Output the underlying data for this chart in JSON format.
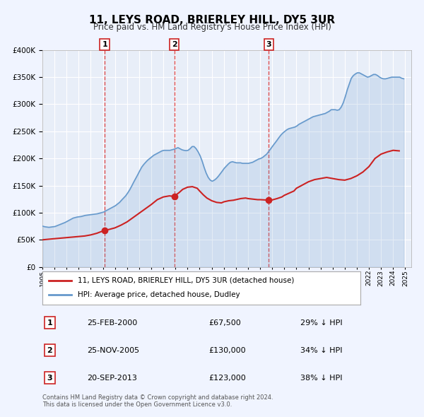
{
  "title": "11, LEYS ROAD, BRIERLEY HILL, DY5 3UR",
  "subtitle": "Price paid vs. HM Land Registry's House Price Index (HPI)",
  "background_color": "#f0f4ff",
  "plot_bg_color": "#e8eef8",
  "grid_color": "#ffffff",
  "ylim": [
    0,
    400000
  ],
  "yticks": [
    0,
    50000,
    100000,
    150000,
    200000,
    250000,
    300000,
    350000,
    400000
  ],
  "ytick_labels": [
    "£0",
    "£50K",
    "£100K",
    "£150K",
    "£200K",
    "£250K",
    "£300K",
    "£350K",
    "£400K"
  ],
  "xmin": 1995.0,
  "xmax": 2025.5,
  "xticks": [
    1995,
    1996,
    1997,
    1998,
    1999,
    2000,
    2001,
    2002,
    2003,
    2004,
    2005,
    2006,
    2007,
    2008,
    2009,
    2010,
    2011,
    2012,
    2013,
    2014,
    2015,
    2016,
    2017,
    2018,
    2019,
    2020,
    2021,
    2022,
    2023,
    2024,
    2025
  ],
  "hpi_color": "#6699cc",
  "price_color": "#cc2222",
  "sale_marker_color": "#cc2222",
  "vline_color": "#dd3333",
  "transactions": [
    {
      "num": 1,
      "date": "25-FEB-2000",
      "x": 2000.15,
      "price": 67500,
      "pct": "29%",
      "direction": "↓"
    },
    {
      "num": 2,
      "date": "25-NOV-2005",
      "x": 2005.9,
      "price": 130000,
      "pct": "34%",
      "direction": "↓"
    },
    {
      "num": 3,
      "date": "20-SEP-2013",
      "x": 2013.72,
      "price": 123000,
      "pct": "38%",
      "direction": "↓"
    }
  ],
  "legend_line1": "11, LEYS ROAD, BRIERLEY HILL, DY5 3UR (detached house)",
  "legend_line2": "HPI: Average price, detached house, Dudley",
  "footer1": "Contains HM Land Registry data © Crown copyright and database right 2024.",
  "footer2": "This data is licensed under the Open Government Licence v3.0.",
  "hpi_data_x": [
    1995.04,
    1995.21,
    1995.38,
    1995.54,
    1995.71,
    1995.88,
    1996.04,
    1996.21,
    1996.38,
    1996.54,
    1996.71,
    1996.88,
    1997.04,
    1997.21,
    1997.38,
    1997.54,
    1997.71,
    1997.88,
    1998.04,
    1998.21,
    1998.38,
    1998.54,
    1998.71,
    1998.88,
    1999.04,
    1999.21,
    1999.38,
    1999.54,
    1999.71,
    1999.88,
    2000.04,
    2000.21,
    2000.38,
    2000.54,
    2000.71,
    2000.88,
    2001.04,
    2001.21,
    2001.38,
    2001.54,
    2001.71,
    2001.88,
    2002.04,
    2002.21,
    2002.38,
    2002.54,
    2002.71,
    2002.88,
    2003.04,
    2003.21,
    2003.38,
    2003.54,
    2003.71,
    2003.88,
    2004.04,
    2004.21,
    2004.38,
    2004.54,
    2004.71,
    2004.88,
    2005.04,
    2005.21,
    2005.38,
    2005.54,
    2005.71,
    2005.88,
    2006.04,
    2006.21,
    2006.38,
    2006.54,
    2006.71,
    2006.88,
    2007.04,
    2007.21,
    2007.38,
    2007.54,
    2007.71,
    2007.88,
    2008.04,
    2008.21,
    2008.38,
    2008.54,
    2008.71,
    2008.88,
    2009.04,
    2009.21,
    2009.38,
    2009.54,
    2009.71,
    2009.88,
    2010.04,
    2010.21,
    2010.38,
    2010.54,
    2010.71,
    2010.88,
    2011.04,
    2011.21,
    2011.38,
    2011.54,
    2011.71,
    2011.88,
    2012.04,
    2012.21,
    2012.38,
    2012.54,
    2012.71,
    2012.88,
    2013.04,
    2013.21,
    2013.38,
    2013.54,
    2013.71,
    2013.88,
    2014.04,
    2014.21,
    2014.38,
    2014.54,
    2014.71,
    2014.88,
    2015.04,
    2015.21,
    2015.38,
    2015.54,
    2015.71,
    2015.88,
    2016.04,
    2016.21,
    2016.38,
    2016.54,
    2016.71,
    2016.88,
    2017.04,
    2017.21,
    2017.38,
    2017.54,
    2017.71,
    2017.88,
    2018.04,
    2018.21,
    2018.38,
    2018.54,
    2018.71,
    2018.88,
    2019.04,
    2019.21,
    2019.38,
    2019.54,
    2019.71,
    2019.88,
    2020.04,
    2020.21,
    2020.38,
    2020.54,
    2020.71,
    2020.88,
    2021.04,
    2021.21,
    2021.38,
    2021.54,
    2021.71,
    2021.88,
    2022.04,
    2022.21,
    2022.38,
    2022.54,
    2022.71,
    2022.88,
    2023.04,
    2023.21,
    2023.38,
    2023.54,
    2023.71,
    2023.88,
    2024.04,
    2024.21,
    2024.38,
    2024.54,
    2024.71,
    2024.88
  ],
  "hpi_data_y": [
    75000,
    74000,
    73500,
    73000,
    73500,
    74000,
    74500,
    76000,
    77500,
    79000,
    80500,
    82000,
    84000,
    86000,
    88000,
    90000,
    91000,
    92000,
    92500,
    93000,
    94000,
    95000,
    95500,
    96000,
    96500,
    97000,
    97500,
    98000,
    99000,
    100000,
    101000,
    103000,
    105000,
    107000,
    109000,
    111000,
    113000,
    116000,
    119000,
    123000,
    127000,
    131000,
    136000,
    142000,
    149000,
    156000,
    163000,
    170000,
    177000,
    184000,
    189000,
    193000,
    197000,
    200000,
    203000,
    206000,
    208000,
    210000,
    212000,
    214000,
    215000,
    215000,
    215000,
    215000,
    216000,
    217000,
    218500,
    220000,
    218000,
    216000,
    215000,
    214500,
    215000,
    218000,
    222000,
    222000,
    218000,
    212000,
    205000,
    195000,
    183000,
    173000,
    165000,
    160000,
    158000,
    160000,
    163000,
    167000,
    172000,
    177000,
    182000,
    186000,
    190000,
    193000,
    194000,
    193000,
    192000,
    192000,
    192000,
    191000,
    191000,
    191000,
    191000,
    192000,
    193000,
    195000,
    197000,
    199000,
    200000,
    202000,
    205000,
    208000,
    213000,
    218000,
    223000,
    228000,
    233000,
    238000,
    243000,
    247000,
    250000,
    253000,
    255000,
    256000,
    257000,
    258000,
    260000,
    263000,
    265000,
    267000,
    269000,
    271000,
    273000,
    275000,
    277000,
    278000,
    279000,
    280000,
    281000,
    282000,
    283000,
    285000,
    287000,
    290000,
    290000,
    290000,
    289000,
    290000,
    295000,
    303000,
    314000,
    327000,
    338000,
    348000,
    353000,
    356000,
    358000,
    358000,
    356000,
    354000,
    352000,
    350000,
    351000,
    353000,
    355000,
    355000,
    353000,
    350000,
    348000,
    347000,
    347000,
    348000,
    349000,
    350000,
    350000,
    350000,
    350000,
    350000,
    348000,
    347000
  ],
  "price_data_x": [
    1995.04,
    1995.5,
    1996.0,
    1996.5,
    1997.0,
    1997.5,
    1998.0,
    1998.5,
    1999.0,
    1999.5,
    2000.15,
    2000.5,
    2001.0,
    2001.5,
    2002.0,
    2002.5,
    2003.0,
    2003.5,
    2004.0,
    2004.5,
    2005.0,
    2005.5,
    2005.9,
    2006.0,
    2006.3,
    2006.6,
    2007.0,
    2007.4,
    2007.8,
    2008.0,
    2008.3,
    2008.6,
    2009.0,
    2009.4,
    2009.8,
    2010.0,
    2010.4,
    2010.8,
    2011.0,
    2011.4,
    2011.8,
    2012.0,
    2012.4,
    2012.8,
    2013.0,
    2013.4,
    2013.72,
    2014.0,
    2014.4,
    2014.8,
    2015.0,
    2015.4,
    2015.8,
    2016.0,
    2016.5,
    2017.0,
    2017.5,
    2018.0,
    2018.5,
    2019.0,
    2019.5,
    2020.0,
    2020.5,
    2021.0,
    2021.5,
    2022.0,
    2022.5,
    2023.0,
    2023.5,
    2024.0,
    2024.5
  ],
  "price_data_y": [
    50000,
    51000,
    52000,
    53000,
    54000,
    55000,
    56000,
    57000,
    59000,
    62000,
    67500,
    69000,
    72000,
    77000,
    83000,
    91000,
    99000,
    107000,
    115000,
    124000,
    129000,
    131000,
    130000,
    132000,
    137000,
    143000,
    147000,
    148000,
    145000,
    140000,
    133000,
    127000,
    122000,
    119000,
    118000,
    120000,
    122000,
    123000,
    124000,
    126000,
    127000,
    126000,
    125000,
    124000,
    124000,
    123500,
    123000,
    123500,
    126000,
    129000,
    132000,
    136000,
    140000,
    145000,
    151000,
    157000,
    161000,
    163000,
    165000,
    163000,
    161000,
    160000,
    163000,
    168000,
    175000,
    185000,
    200000,
    208000,
    212000,
    215000,
    214000
  ]
}
